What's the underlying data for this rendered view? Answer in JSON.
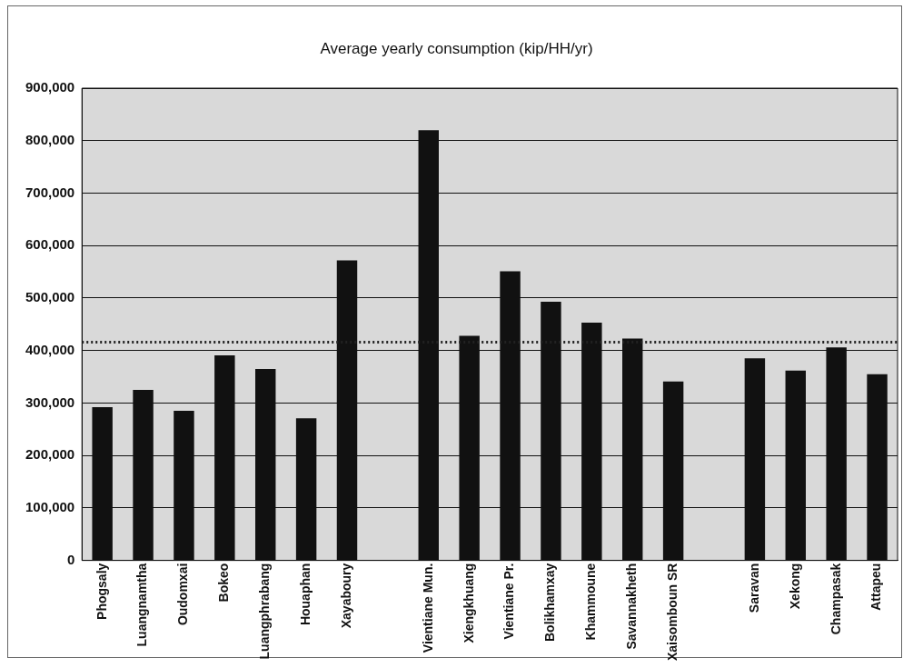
{
  "chart_data": {
    "type": "bar",
    "title": "Average yearly consumption (kip/HH/yr)",
    "categories": [
      "Phogsaly",
      "Luangnamtha",
      "Oudomxai",
      "Bokeo",
      "Luangphrabang",
      "Houaphan",
      "Xayaboury",
      null,
      "Vientiane Mun.",
      "Xiengkhuang",
      "Vientiane Pr.",
      "Bolikhamxay",
      "Khammoune",
      "Savannakheth",
      "Xaisomboun SR",
      null,
      "Saravan",
      "Xekong",
      "Champasak",
      "Attapeu"
    ],
    "values": [
      292000,
      325000,
      285000,
      391000,
      365000,
      271000,
      572000,
      null,
      820000,
      428000,
      551000,
      493000,
      453000,
      423000,
      341000,
      null,
      385000,
      362000,
      406000,
      355000
    ],
    "color": "#111111",
    "ylim": [
      0,
      900000
    ],
    "yticks": [
      {
        "value": 0,
        "label": "0"
      },
      {
        "value": 100000,
        "label": "100,000"
      },
      {
        "value": 200000,
        "label": "200,000"
      },
      {
        "value": 300000,
        "label": "300,000"
      },
      {
        "value": 400000,
        "label": "400,000"
      },
      {
        "value": 500000,
        "label": "500,000"
      },
      {
        "value": 600000,
        "label": "600,000"
      },
      {
        "value": 700000,
        "label": "700,000"
      },
      {
        "value": 800000,
        "label": "800,000"
      },
      {
        "value": 900000,
        "label": "900,000"
      }
    ],
    "ref_lines": [
      {
        "axis": "y",
        "value": 416000,
        "color": "#222222",
        "line_style": "dotted"
      }
    ],
    "grid": "y",
    "legend": false
  }
}
